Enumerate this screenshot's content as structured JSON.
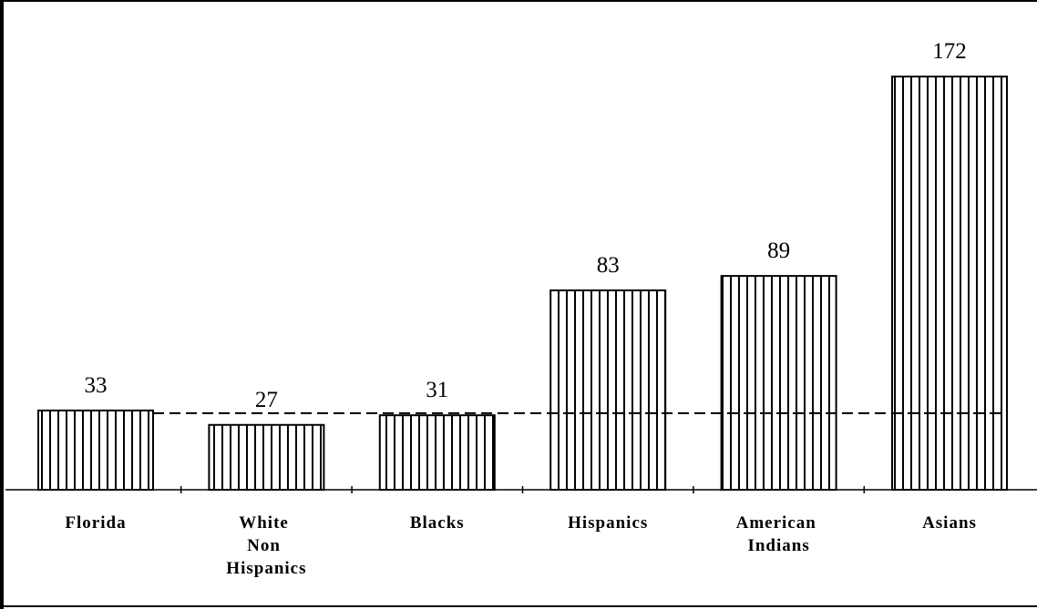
{
  "chart_data": {
    "type": "bar",
    "categories": [
      "Florida",
      "White Non Hispanics",
      "Blacks",
      "Hispanics",
      "American Indians",
      "Asians"
    ],
    "values": [
      33,
      27,
      31,
      83,
      89,
      172
    ],
    "color": "#000000",
    "ylim": [
      0,
      180
    ]
  }
}
